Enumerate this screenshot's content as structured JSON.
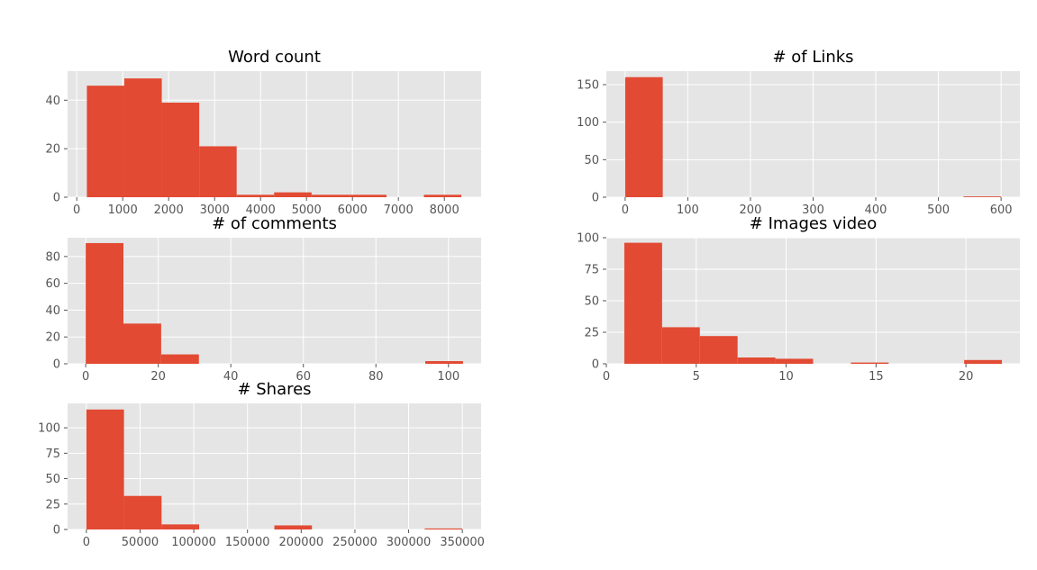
{
  "figure": {
    "background": "#ffffff",
    "panel_background": "#e5e5e5",
    "grid_color": "#ffffff",
    "bar_color": "#e24a33"
  },
  "chart_data": [
    {
      "type": "bar",
      "subtype": "histogram",
      "title": "Word count",
      "bins": [
        {
          "from": 220,
          "to": 1035,
          "count": 46
        },
        {
          "from": 1035,
          "to": 1850,
          "count": 49
        },
        {
          "from": 1850,
          "to": 2665,
          "count": 39
        },
        {
          "from": 2665,
          "to": 3480,
          "count": 21
        },
        {
          "from": 3480,
          "to": 4295,
          "count": 1
        },
        {
          "from": 4295,
          "to": 5110,
          "count": 2
        },
        {
          "from": 5110,
          "to": 5925,
          "count": 1
        },
        {
          "from": 5925,
          "to": 6740,
          "count": 1
        },
        {
          "from": 6740,
          "to": 7555,
          "count": 0
        },
        {
          "from": 7555,
          "to": 8370,
          "count": 1
        }
      ],
      "xlim": [
        -200,
        8800
      ],
      "ylim": [
        0,
        52
      ],
      "xticks": [
        0,
        1000,
        2000,
        3000,
        4000,
        5000,
        6000,
        7000,
        8000
      ],
      "yticks": [
        0,
        20,
        40
      ],
      "grid": true
    },
    {
      "type": "bar",
      "subtype": "histogram",
      "title": "# of Links",
      "bins": [
        {
          "from": 0,
          "to": 60,
          "count": 160
        },
        {
          "from": 60,
          "to": 120,
          "count": 0
        },
        {
          "from": 120,
          "to": 180,
          "count": 0
        },
        {
          "from": 180,
          "to": 240,
          "count": 0
        },
        {
          "from": 240,
          "to": 300,
          "count": 0
        },
        {
          "from": 300,
          "to": 360,
          "count": 0
        },
        {
          "from": 360,
          "to": 420,
          "count": 0
        },
        {
          "from": 420,
          "to": 480,
          "count": 0
        },
        {
          "from": 480,
          "to": 540,
          "count": 0
        },
        {
          "from": 540,
          "to": 600,
          "count": 1
        }
      ],
      "xlim": [
        -30,
        630
      ],
      "ylim": [
        0,
        168
      ],
      "xticks": [
        0,
        100,
        200,
        300,
        400,
        500,
        600
      ],
      "yticks": [
        0,
        50,
        100,
        150
      ],
      "grid": true
    },
    {
      "type": "bar",
      "subtype": "histogram",
      "title": "# of comments",
      "bins": [
        {
          "from": 0,
          "to": 10.4,
          "count": 90
        },
        {
          "from": 10.4,
          "to": 20.8,
          "count": 30
        },
        {
          "from": 20.8,
          "to": 31.2,
          "count": 7
        },
        {
          "from": 31.2,
          "to": 41.6,
          "count": 0
        },
        {
          "from": 41.6,
          "to": 52.0,
          "count": 0
        },
        {
          "from": 52.0,
          "to": 62.4,
          "count": 0
        },
        {
          "from": 62.4,
          "to": 72.8,
          "count": 0
        },
        {
          "from": 72.8,
          "to": 83.2,
          "count": 0
        },
        {
          "from": 83.2,
          "to": 93.6,
          "count": 0
        },
        {
          "from": 93.6,
          "to": 104,
          "count": 2
        }
      ],
      "xlim": [
        -5,
        109
      ],
      "ylim": [
        0,
        94
      ],
      "xticks": [
        0,
        20,
        40,
        60,
        80,
        100
      ],
      "yticks": [
        0,
        20,
        40,
        60,
        80
      ],
      "grid": true
    },
    {
      "type": "bar",
      "subtype": "histogram",
      "title": "# Images video",
      "bins": [
        {
          "from": 1,
          "to": 3.1,
          "count": 96
        },
        {
          "from": 3.1,
          "to": 5.2,
          "count": 29
        },
        {
          "from": 5.2,
          "to": 7.3,
          "count": 22
        },
        {
          "from": 7.3,
          "to": 9.4,
          "count": 5
        },
        {
          "from": 9.4,
          "to": 11.5,
          "count": 4
        },
        {
          "from": 11.5,
          "to": 13.6,
          "count": 0
        },
        {
          "from": 13.6,
          "to": 15.7,
          "count": 1
        },
        {
          "from": 15.7,
          "to": 17.8,
          "count": 0
        },
        {
          "from": 17.8,
          "to": 19.9,
          "count": 0
        },
        {
          "from": 19.9,
          "to": 22,
          "count": 3
        }
      ],
      "xlim": [
        0,
        23
      ],
      "ylim": [
        0,
        100
      ],
      "xticks": [
        0,
        5,
        10,
        15,
        20
      ],
      "yticks": [
        0,
        25,
        50,
        75,
        100
      ],
      "grid": true
    },
    {
      "type": "bar",
      "subtype": "histogram",
      "title": "# Shares",
      "bins": [
        {
          "from": 0,
          "to": 35000,
          "count": 118
        },
        {
          "from": 35000,
          "to": 70000,
          "count": 33
        },
        {
          "from": 70000,
          "to": 105000,
          "count": 5
        },
        {
          "from": 105000,
          "to": 140000,
          "count": 0
        },
        {
          "from": 140000,
          "to": 175000,
          "count": 0
        },
        {
          "from": 175000,
          "to": 210000,
          "count": 4
        },
        {
          "from": 210000,
          "to": 245000,
          "count": 0
        },
        {
          "from": 245000,
          "to": 280000,
          "count": 0
        },
        {
          "from": 280000,
          "to": 315000,
          "count": 0
        },
        {
          "from": 315000,
          "to": 350000,
          "count": 1
        }
      ],
      "xlim": [
        -17500,
        367500
      ],
      "ylim": [
        0,
        124
      ],
      "xticks": [
        0,
        50000,
        100000,
        150000,
        200000,
        250000,
        300000,
        350000
      ],
      "yticks": [
        0,
        25,
        50,
        75,
        100
      ],
      "grid": true
    }
  ]
}
